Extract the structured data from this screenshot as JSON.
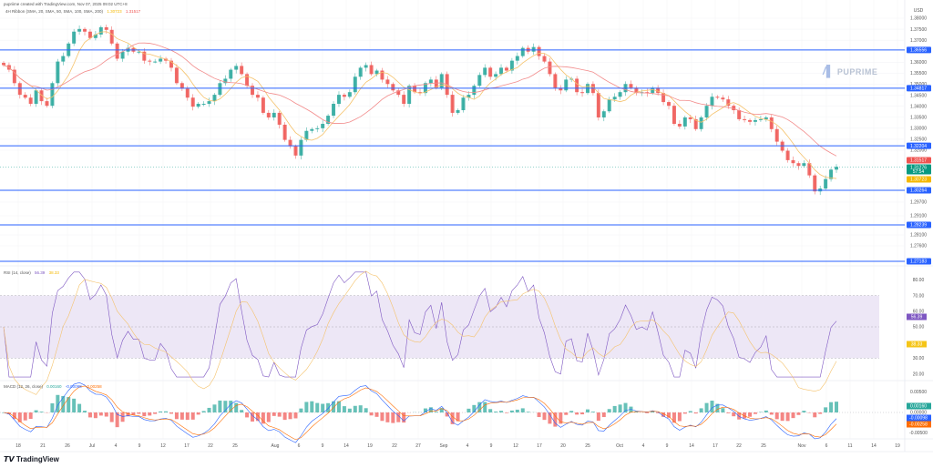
{
  "header": {
    "credit": "pupriime created with TradingView.com, Nov 07, 2025 09:02 UTC+8",
    "main_indicator": "4H Ribbon (SMA, 20, SMA, 50, SMA, 100, SMA, 200)",
    "main_values": [
      "1.30723",
      "1.31517"
    ],
    "rsi_label": "RSI (14, close)",
    "rsi_values": [
      "56.39",
      "38.33"
    ],
    "macd_label": "MACD (12, 26, close)",
    "macd_values": [
      "0.00160",
      "-0.00098",
      "-0.00258"
    ]
  },
  "watermark": "PUPRIME",
  "footer_logo": "TradingView",
  "colors": {
    "up": "#26a69a",
    "down": "#ef5350",
    "level": "#2962ff",
    "sma_fast": "#f5c26b",
    "sma_slow": "#f28b8b",
    "rsi": "#7e57c2",
    "rsi_band": "#ede7f6",
    "macd_line": "#2962ff",
    "signal": "#ff6d00"
  },
  "chart_data": [
    {
      "type": "candlestick",
      "currency": "USD",
      "price_ticks": [
        "1.38000",
        "1.37500",
        "1.37000",
        "1.36000",
        "1.35500",
        "1.35000",
        "1.34500",
        "1.34000",
        "1.33500",
        "1.33000",
        "1.32500",
        "1.32000",
        "1.29700",
        "1.29100",
        "1.28100",
        "1.27600"
      ],
      "horizontal_levels": [
        "1.36556",
        "1.34817",
        "1.32204",
        "1.30264",
        "1.28239",
        "1.27183"
      ],
      "price_labels": [
        {
          "value": "1.31517",
          "color": "#ef5350"
        },
        {
          "value": "1.31276",
          "sub": "57:54",
          "color": "#089981"
        },
        {
          "value": "1.30723",
          "color": "#f5b800"
        }
      ],
      "closes": [
        1.3587,
        1.3566,
        1.3505,
        1.3452,
        1.3439,
        1.3411,
        1.3472,
        1.3423,
        1.3402,
        1.3505,
        1.3603,
        1.3628,
        1.3685,
        1.3739,
        1.3751,
        1.3739,
        1.371,
        1.3726,
        1.3759,
        1.3747,
        1.3685,
        1.3616,
        1.3648,
        1.3665,
        1.3648,
        1.3648,
        1.3607,
        1.3603,
        1.3603,
        1.3616,
        1.3607,
        1.3575,
        1.3505,
        1.348,
        1.3439,
        1.3398,
        1.3411,
        1.3411,
        1.3423,
        1.3452,
        1.3505,
        1.3525,
        1.3566,
        1.3583,
        1.3546,
        1.3493,
        1.3452,
        1.3439,
        1.337,
        1.3349,
        1.337,
        1.3316,
        1.3247,
        1.3218,
        1.3177,
        1.3247,
        1.3288,
        1.3296,
        1.33,
        1.332,
        1.3357,
        1.3411,
        1.3452,
        1.3443,
        1.3464,
        1.3534,
        1.3575,
        1.3587,
        1.3546,
        1.3562,
        1.3521,
        1.3501,
        1.3472,
        1.3452,
        1.3411,
        1.3493,
        1.3464,
        1.346,
        1.3505,
        1.3521,
        1.3484,
        1.3546,
        1.3452,
        1.337,
        1.3382,
        1.3439,
        1.3452,
        1.3493,
        1.3542,
        1.3575,
        1.3534,
        1.3546,
        1.3575,
        1.3562,
        1.3607,
        1.3628,
        1.3665,
        1.3648,
        1.3669,
        1.3628,
        1.3603,
        1.3546,
        1.3484,
        1.3472,
        1.3521,
        1.3525,
        1.3464,
        1.346,
        1.3501,
        1.346,
        1.3349,
        1.3377,
        1.3431,
        1.3443,
        1.3464,
        1.3501,
        1.3484,
        1.346,
        1.3464,
        1.346,
        1.3484,
        1.346,
        1.3419,
        1.3402,
        1.332,
        1.3308,
        1.3349,
        1.3341,
        1.3296,
        1.3349,
        1.3402,
        1.3443,
        1.3439,
        1.3431,
        1.3402,
        1.3382,
        1.3341,
        1.3337,
        1.3329,
        1.3337,
        1.3341,
        1.3349,
        1.3296,
        1.3239,
        1.3198,
        1.3157,
        1.3144,
        1.3132,
        1.3144,
        1.3091,
        1.3021,
        1.3034,
        1.3075,
        1.3116,
        1.3128
      ]
    },
    {
      "type": "line",
      "title": "RSI (14, close)",
      "y_ticks": [
        "80.00",
        "70.00",
        "60.00",
        "50.00",
        "30.00",
        "20.00"
      ],
      "band": [
        30,
        70
      ],
      "labels": [
        {
          "value": "56.39",
          "color": "#7e57c2"
        },
        {
          "value": "38.33",
          "color": "#f5c518"
        }
      ]
    },
    {
      "type": "bar",
      "title": "MACD (12, 26, close)",
      "y_ticks": [
        "0.00500",
        "0.00000",
        "-0.00500"
      ],
      "labels": [
        {
          "value": "0.00160",
          "color": "#26a69a"
        },
        {
          "value": "-0.00098",
          "color": "#2962ff"
        },
        {
          "value": "-0.00258",
          "color": "#ff6d00"
        }
      ]
    }
  ],
  "time_axis": [
    "18",
    "21",
    "26",
    "Jul",
    "4",
    "9",
    "12",
    "17",
    "22",
    "25",
    "Aug",
    "6",
    "9",
    "14",
    "19",
    "22",
    "27",
    "Sep",
    "4",
    "9",
    "12",
    "17",
    "20",
    "25",
    "Oct",
    "4",
    "9",
    "14",
    "17",
    "22",
    "25",
    "Nov",
    "6",
    "11",
    "14",
    "19"
  ]
}
